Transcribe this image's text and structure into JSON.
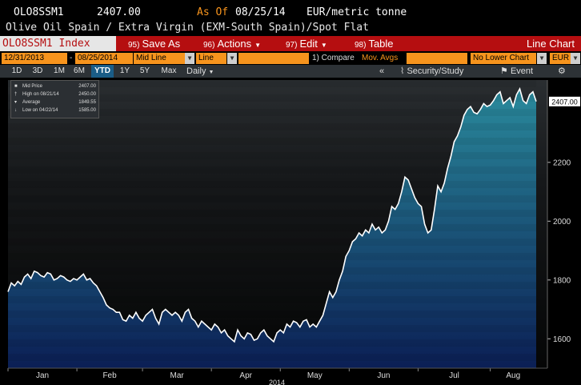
{
  "header": {
    "ticker": "OLO8SSM1",
    "price": "2407.00",
    "as_of_label": "As Of",
    "as_of_date": "08/25/14",
    "unit": "EUR/metric tonne",
    "description": "Olive Oil Spain / Extra Virgin (EXM-South Spain)/Spot Flat"
  },
  "toolbar": {
    "ticker_field": "OLO8SSM1 Index",
    "actions": [
      {
        "num": "95)",
        "label": "Save As",
        "dropdown": false
      },
      {
        "num": "96)",
        "label": "Actions",
        "dropdown": true
      },
      {
        "num": "97)",
        "label": "Edit",
        "dropdown": true
      },
      {
        "num": "98)",
        "label": "Table",
        "dropdown": false
      }
    ],
    "chart_type": "Line Chart"
  },
  "settings": {
    "start_date": "12/31/2013",
    "end_date": "08/25/2014",
    "price_type": "Mid Line",
    "style": "Line",
    "compare_label": "1) Compare",
    "mov_avgs_label": "Mov. Avgs",
    "lower_chart": "No Lower Chart",
    "currency": "EUR"
  },
  "ranges": {
    "items": [
      "1D",
      "3D",
      "1M",
      "6M",
      "YTD",
      "1Y",
      "5Y",
      "Max"
    ],
    "selected": "YTD",
    "period": "Daily",
    "security_study": "Security/Study",
    "event": "Event"
  },
  "legend": {
    "rows": [
      {
        "label": "Mid Price",
        "value": "2407.00"
      },
      {
        "label": "High on 08/21/14",
        "value": "2450.00"
      },
      {
        "label": "Average",
        "value": "1849.55"
      },
      {
        "label": "Low on 04/22/14",
        "value": "1585.00"
      }
    ]
  },
  "colors": {
    "header_orange": "#f7941d",
    "toolbar_red": "#b50e10",
    "area_top": "#2a8a9c",
    "area_bottom": "#0b1f55",
    "line": "#ffffff",
    "last_price_box": "#ffffff"
  },
  "chart_data": {
    "type": "area",
    "x_axis_labels": [
      "Jan",
      "Feb",
      "Mar",
      "Apr",
      "May",
      "Jun",
      "Jul",
      "Aug"
    ],
    "year_label": "2014",
    "y_ticks": [
      1600,
      1800,
      2000,
      2200
    ],
    "ylim": [
      1500,
      2480
    ],
    "last_value_label": "2407.00",
    "series": [
      {
        "values": [
          1760,
          1790,
          1780,
          1795,
          1785,
          1810,
          1820,
          1805,
          1830,
          1825,
          1815,
          1810,
          1825,
          1820,
          1800,
          1805,
          1815,
          1810,
          1800,
          1795,
          1805,
          1800,
          1810,
          1820,
          1800,
          1805,
          1790,
          1780,
          1760,
          1740,
          1715,
          1705,
          1700,
          1690,
          1690,
          1665,
          1660,
          1680,
          1670,
          1690,
          1670,
          1660,
          1680,
          1690,
          1700,
          1670,
          1650,
          1690,
          1700,
          1690,
          1680,
          1690,
          1680,
          1660,
          1690,
          1700,
          1670,
          1660,
          1640,
          1660,
          1650,
          1640,
          1630,
          1650,
          1640,
          1620,
          1630,
          1610,
          1600,
          1590,
          1630,
          1610,
          1600,
          1620,
          1615,
          1595,
          1600,
          1620,
          1630,
          1610,
          1600,
          1590,
          1620,
          1630,
          1620,
          1650,
          1640,
          1660,
          1655,
          1640,
          1660,
          1665,
          1640,
          1650,
          1640,
          1660,
          1680,
          1720,
          1760,
          1740,
          1760,
          1800,
          1830,
          1880,
          1900,
          1930,
          1940,
          1960,
          1950,
          1970,
          1960,
          1990,
          1970,
          1980,
          1960,
          1970,
          2000,
          2050,
          2040,
          2060,
          2100,
          2150,
          2140,
          2110,
          2080,
          2060,
          2050,
          1990,
          1960,
          1970,
          2040,
          2120,
          2100,
          2130,
          2180,
          2220,
          2270,
          2290,
          2320,
          2360,
          2380,
          2390,
          2370,
          2365,
          2380,
          2400,
          2390,
          2395,
          2410,
          2430,
          2440,
          2400,
          2410,
          2420,
          2390,
          2430,
          2450,
          2410,
          2400,
          2430,
          2440,
          2407
        ]
      }
    ]
  }
}
